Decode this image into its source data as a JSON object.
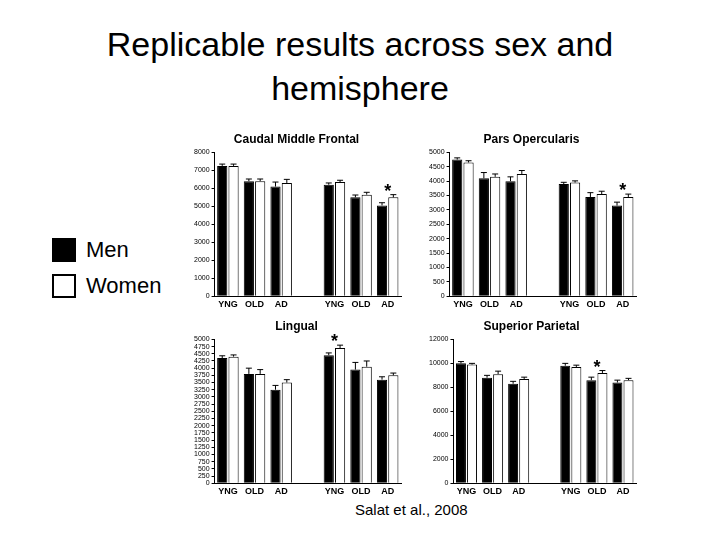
{
  "title": "Replicable results across sex and hemisphere",
  "citation": "Salat et al., 2008",
  "chart_data": [
    {
      "type": "bar",
      "title": "Caudal Middle Frontal",
      "categories": [
        "YNG",
        "OLD",
        "AD",
        null,
        "YNG",
        "OLD",
        "AD"
      ],
      "series": [
        {
          "name": "Men",
          "color": "#000000",
          "values": [
            7250,
            6400,
            6100,
            null,
            6200,
            5500,
            5050
          ],
          "errors": [
            100,
            120,
            250,
            null,
            100,
            130,
            150
          ]
        },
        {
          "name": "Women",
          "color": "#ffffff",
          "values": [
            7250,
            6400,
            6300,
            null,
            6350,
            5650,
            5500
          ],
          "errors": [
            100,
            120,
            200,
            null,
            100,
            130,
            150
          ]
        }
      ],
      "ylim": [
        0,
        8000
      ],
      "yticks": [
        0,
        1000,
        2000,
        3000,
        4000,
        5000,
        6000,
        7000,
        8000
      ],
      "grid": false,
      "annotations": [
        {
          "text": "*",
          "index": 6
        }
      ]
    },
    {
      "type": "bar",
      "title": "Pars Opercularis",
      "categories": [
        "YNG",
        "OLD",
        "AD",
        null,
        "YNG",
        "OLD",
        "AD"
      ],
      "series": [
        {
          "name": "Men",
          "color": "#000000",
          "values": [
            4750,
            4100,
            4000,
            null,
            3900,
            3450,
            3150
          ],
          "errors": [
            60,
            200,
            150,
            null,
            60,
            150,
            120
          ]
        },
        {
          "name": "Women",
          "color": "#ffffff",
          "values": [
            4650,
            4150,
            4250,
            null,
            3950,
            3550,
            3450
          ],
          "errors": [
            60,
            100,
            120,
            null,
            60,
            100,
            100
          ]
        }
      ],
      "ylim": [
        0,
        5000
      ],
      "yticks": [
        0,
        500,
        1000,
        1500,
        2000,
        2500,
        3000,
        3500,
        4000,
        4500,
        5000
      ],
      "grid": false,
      "annotations": [
        {
          "text": "*",
          "index": 6
        }
      ]
    },
    {
      "type": "bar",
      "title": "Lingual",
      "categories": [
        "YNG",
        "OLD",
        "AD",
        null,
        "YNG",
        "OLD",
        "AD"
      ],
      "series": [
        {
          "name": "Men",
          "color": "#000000",
          "values": [
            4350,
            3800,
            3250,
            null,
            4450,
            3950,
            3600
          ],
          "errors": [
            80,
            200,
            150,
            null,
            80,
            250,
            100
          ]
        },
        {
          "name": "Women",
          "color": "#ffffff",
          "values": [
            4400,
            3800,
            3500,
            null,
            4700,
            4050,
            3750
          ],
          "errors": [
            60,
            150,
            100,
            null,
            100,
            200,
            80
          ]
        }
      ],
      "ylim": [
        0,
        5000
      ],
      "yticks": [
        0,
        250,
        500,
        750,
        1000,
        1250,
        1500,
        1750,
        2000,
        2250,
        2500,
        2750,
        3000,
        3250,
        3500,
        3750,
        4000,
        4250,
        4500,
        4750,
        5000
      ],
      "grid": false,
      "annotations": [
        {
          "text": "*",
          "index": 4
        }
      ]
    },
    {
      "type": "bar",
      "title": "Superior Parietal",
      "categories": [
        "YNG",
        "OLD",
        "AD",
        null,
        "YNG",
        "OLD",
        "AD"
      ],
      "series": [
        {
          "name": "Men",
          "color": "#000000",
          "values": [
            10000,
            8800,
            8300,
            null,
            9800,
            8600,
            8400
          ],
          "errors": [
            150,
            200,
            200,
            null,
            200,
            250,
            200
          ]
        },
        {
          "name": "Women",
          "color": "#ffffff",
          "values": [
            9900,
            9100,
            8700,
            null,
            9700,
            9200,
            8600
          ],
          "errors": [
            100,
            250,
            150,
            null,
            150,
            200,
            150
          ]
        }
      ],
      "ylim": [
        0,
        12000
      ],
      "yticks": [
        0,
        2000,
        4000,
        6000,
        8000,
        10000,
        12000
      ],
      "grid": false,
      "annotations": [
        {
          "text": "*",
          "index": 5
        }
      ]
    }
  ]
}
